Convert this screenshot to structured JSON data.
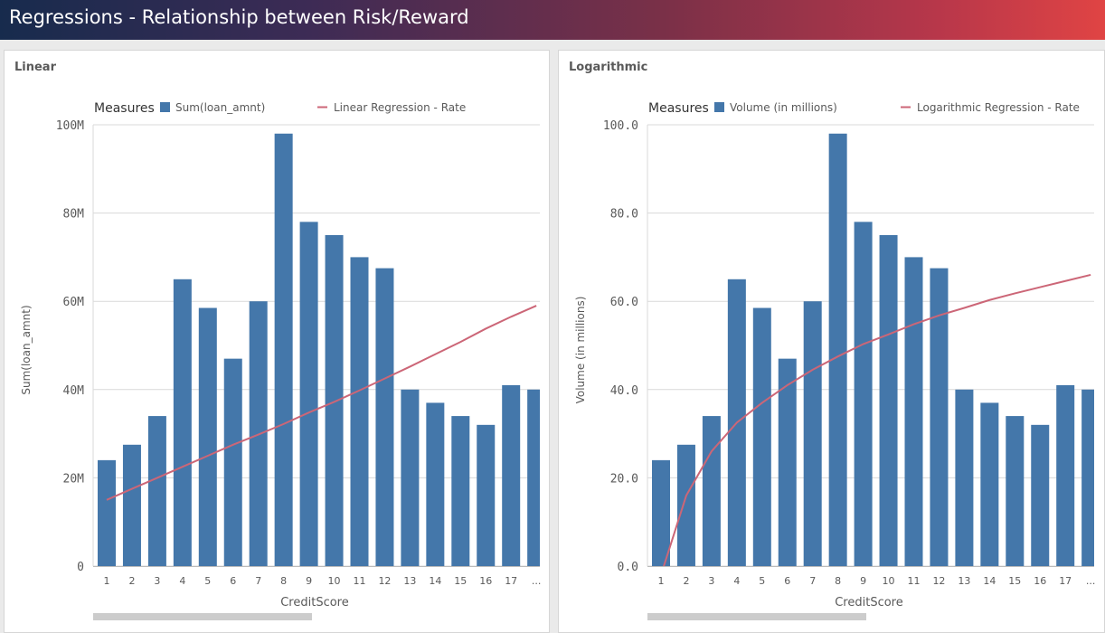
{
  "header": {
    "title": "Regressions - Relationship between Risk/Reward"
  },
  "colors": {
    "bar": "#4477aa",
    "line": "#cc6677",
    "grid": "#d9d9d9",
    "axis_text": "#595959"
  },
  "chart_data": [
    {
      "type": "bar",
      "panel_title": "Linear",
      "legend_heading": "Measures",
      "title": "",
      "xlabel": "CreditScore",
      "ylabel": "Sum(loan_amnt)",
      "ylim": [
        0,
        100
      ],
      "y_ticks": [
        0,
        20,
        40,
        60,
        80,
        100
      ],
      "y_tick_labels": [
        "0",
        "20M",
        "40M",
        "60M",
        "80M",
        "100M"
      ],
      "categories": [
        "1",
        "2",
        "3",
        "4",
        "5",
        "6",
        "7",
        "8",
        "9",
        "10",
        "11",
        "12",
        "13",
        "14",
        "15",
        "16",
        "17",
        "..."
      ],
      "series": [
        {
          "name": "Sum(loan_amnt)",
          "kind": "bar",
          "values": [
            24,
            27.5,
            34,
            65,
            58.5,
            47,
            60,
            98,
            78,
            75,
            70,
            67.5,
            40,
            37,
            34,
            32,
            41,
            40
          ]
        },
        {
          "name": "Linear Regression - Rate",
          "kind": "line",
          "values": [
            15,
            17.5,
            20,
            22.5,
            25,
            27.5,
            29.8,
            32.2,
            34.8,
            37.2,
            39.8,
            42.5,
            45.2,
            48,
            50.8,
            53.8,
            56.5,
            59
          ]
        }
      ]
    },
    {
      "type": "bar",
      "panel_title": "Logarithmic",
      "legend_heading": "Measures",
      "title": "",
      "xlabel": "CreditScore",
      "ylabel": "Volume (in millions)",
      "ylim": [
        0,
        100
      ],
      "y_ticks": [
        0,
        20,
        40,
        60,
        80,
        100
      ],
      "y_tick_labels": [
        "0.0",
        "20.0",
        "40.0",
        "60.0",
        "80.0",
        "100.0"
      ],
      "categories": [
        "1",
        "2",
        "3",
        "4",
        "5",
        "6",
        "7",
        "8",
        "9",
        "10",
        "11",
        "12",
        "13",
        "14",
        "15",
        "16",
        "17",
        "..."
      ],
      "series": [
        {
          "name": "Volume (in millions)",
          "kind": "bar",
          "values": [
            24,
            27.5,
            34,
            65,
            58.5,
            47,
            60,
            98,
            78,
            75,
            70,
            67.5,
            40,
            37,
            34,
            32,
            41,
            40
          ]
        },
        {
          "name": "Logarithmic Regression - Rate",
          "kind": "line",
          "values": [
            -2,
            16,
            26,
            32.5,
            37,
            41,
            44.5,
            47.5,
            50.3,
            52.5,
            54.8,
            56.8,
            58.5,
            60.3,
            61.8,
            63.2,
            64.6,
            66
          ]
        }
      ]
    }
  ]
}
